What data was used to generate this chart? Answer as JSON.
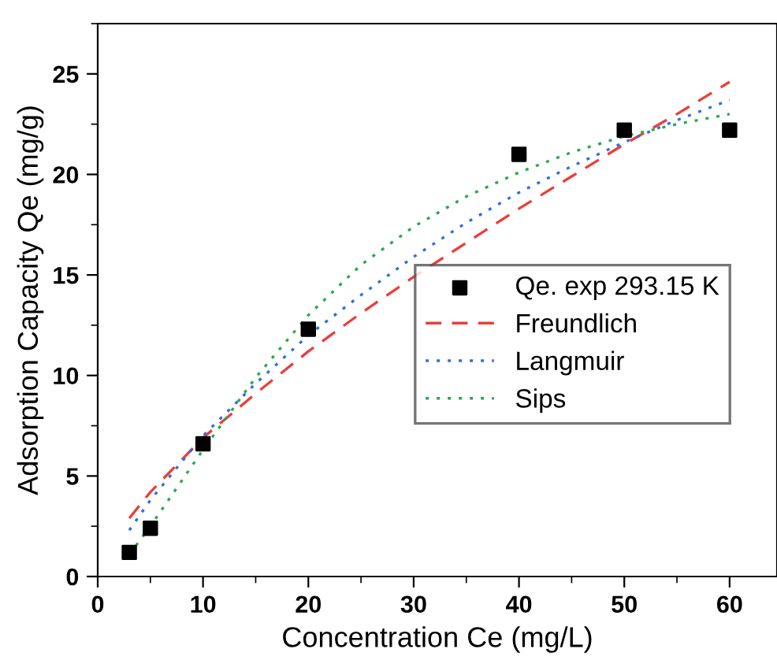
{
  "chart_data": {
    "type": "line",
    "xlabel": "Concentration Ce (mg/L)",
    "ylabel": "Adsorption Capacity Qe (mg/g)",
    "xlim": [
      0,
      64.5
    ],
    "ylim": [
      0,
      27.5
    ],
    "xticks": [
      0,
      10,
      20,
      30,
      40,
      50,
      60
    ],
    "yticks": [
      0,
      5,
      10,
      15,
      20,
      25
    ],
    "grid": false,
    "legend": "right",
    "series": [
      {
        "name": "Qe. exp 293.15 K",
        "type": "scatter",
        "marker": "square",
        "color": "#000000",
        "x": [
          3,
          5,
          10,
          20,
          40,
          50,
          60
        ],
        "values": [
          1.2,
          2.4,
          6.6,
          12.3,
          21.0,
          22.2,
          22.2
        ]
      },
      {
        "name": "Freundlich",
        "line_style": "dashed",
        "color": "#e8403c",
        "x": [
          3,
          5,
          10,
          15,
          20,
          25,
          30,
          35,
          40,
          45,
          50,
          55,
          60
        ],
        "values": [
          2.9,
          4.2,
          6.9,
          9.1,
          11.2,
          13.1,
          14.9,
          16.6,
          18.3,
          19.9,
          21.5,
          23.0,
          24.6
        ]
      },
      {
        "name": "Langmuir",
        "line_style": "dotted",
        "color": "#2f6fe0",
        "x": [
          3,
          5,
          10,
          15,
          20,
          25,
          30,
          35,
          40,
          45,
          50,
          55,
          60
        ],
        "values": [
          2.3,
          3.8,
          7.0,
          9.6,
          12.0,
          14.0,
          15.9,
          17.6,
          19.1,
          20.4,
          21.6,
          22.7,
          23.7
        ]
      },
      {
        "name": "Sips",
        "line_style": "dotted",
        "color": "#2ca84a",
        "x": [
          3,
          5,
          10,
          15,
          20,
          25,
          30,
          35,
          40,
          45,
          50,
          55,
          60
        ],
        "values": [
          1.1,
          2.5,
          6.3,
          9.9,
          13.0,
          15.5,
          17.4,
          18.9,
          20.1,
          21.1,
          21.9,
          22.5,
          23.0
        ]
      }
    ]
  }
}
